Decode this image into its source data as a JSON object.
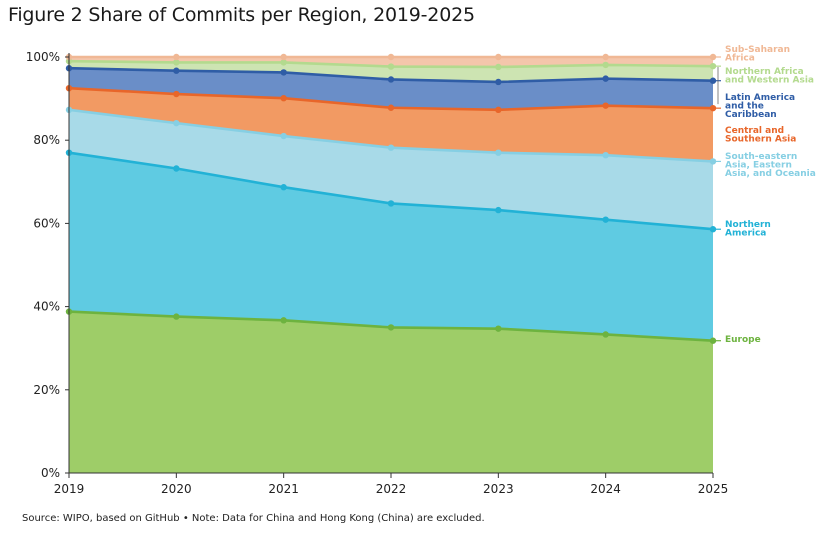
{
  "title": "Figure 2 Share of Commits per Region, 2019-2025",
  "source": "Source: WIPO, based on GitHub • Note: Data for China and Hong Kong (China) are excluded.",
  "chart_data": {
    "type": "area",
    "stacked": true,
    "x": [
      2019,
      2020,
      2021,
      2022,
      2023,
      2024,
      2025
    ],
    "x_tick_labels": [
      "2019",
      "2020",
      "2021",
      "2022",
      "2023",
      "2024",
      "2025"
    ],
    "ylim": [
      0,
      100
    ],
    "y_ticks": [
      0,
      20,
      40,
      60,
      80,
      100
    ],
    "y_tick_labels": [
      "0%",
      "20%",
      "40%",
      "60%",
      "80%",
      "100%"
    ],
    "grid": false,
    "legend_position": "right, labels at line ends",
    "series": [
      {
        "name": "Europe",
        "values": [
          38.8,
          37.6,
          36.7,
          35.0,
          34.7,
          33.3,
          31.8
        ],
        "line_color": "#6db33f",
        "fill_color": "#9ecd68",
        "label_lines": [
          "Europe"
        ]
      },
      {
        "name": "Northern America",
        "values": [
          38.2,
          35.6,
          32.0,
          29.8,
          28.5,
          27.6,
          26.8
        ],
        "line_color": "#22b2d6",
        "fill_color": "#5fcbe2",
        "label_lines": [
          "Northern",
          "America"
        ]
      },
      {
        "name": "South-eastern Asia, Eastern Asia, and Oceania",
        "values": [
          10.3,
          10.9,
          12.3,
          13.4,
          13.8,
          15.5,
          16.3
        ],
        "line_color": "#86cfe3",
        "fill_color": "#a8dae8",
        "label_lines": [
          "South-eastern",
          "Asia, Eastern",
          "Asia, and Oceania"
        ]
      },
      {
        "name": "Central and Southern Asia",
        "values": [
          5.2,
          7.0,
          9.1,
          9.6,
          10.3,
          11.9,
          12.8
        ],
        "line_color": "#e8662a",
        "fill_color": "#f29a63",
        "label_lines": [
          "Central and",
          "Southern Asia"
        ]
      },
      {
        "name": "Latin America and the Caribbean",
        "values": [
          4.8,
          5.6,
          6.2,
          6.8,
          6.7,
          6.5,
          6.6
        ],
        "line_color": "#2f5da6",
        "fill_color": "#6a8ec8",
        "label_lines": [
          "Latin America",
          "and the",
          "Caribbean"
        ]
      },
      {
        "name": "Northern Africa and Western Asia",
        "values": [
          1.7,
          2.0,
          2.4,
          3.1,
          3.6,
          3.3,
          3.5
        ],
        "line_color": "#b3da8e",
        "fill_color": "#cde4b2",
        "label_lines": [
          "Northern Africa",
          "and Western Asia"
        ]
      },
      {
        "name": "Sub-Saharan Africa",
        "values": [
          1.0,
          1.3,
          1.3,
          2.3,
          2.4,
          1.9,
          2.2
        ],
        "line_color": "#f0b895",
        "fill_color": "#f4c6ab",
        "label_lines": [
          "Sub-Saharan",
          "Africa"
        ]
      }
    ]
  }
}
